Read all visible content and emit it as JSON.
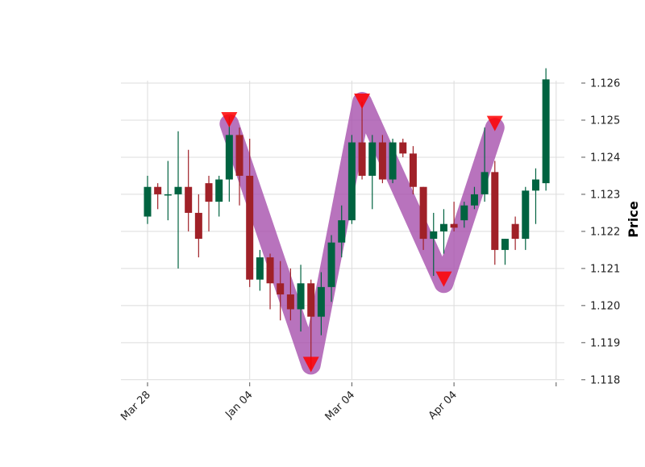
{
  "chart_data": {
    "type": "candlestick",
    "title": "",
    "xlabel": "",
    "ylabel": "Price",
    "ylim": [
      1.1178,
      1.1265
    ],
    "y_ticks": [
      "1.118",
      "1.119",
      "1.120",
      "1.121",
      "1.122",
      "1.123",
      "1.124",
      "1.125",
      "1.126"
    ],
    "x_tick_labels": [
      "Mar 28",
      "Jan 04",
      "Mar 04",
      "Apr 04",
      ""
    ],
    "grid": true,
    "colors": {
      "up": "#006340",
      "down": "#a02128",
      "overlay": "#a650ad",
      "marker": "#ff0000",
      "grid": "#dcdcdc",
      "axis_text": "#222222"
    },
    "candles": [
      {
        "open": 1.1224,
        "high": 1.1235,
        "low": 1.1222,
        "close": 1.1232
      },
      {
        "open": 1.1232,
        "high": 1.1233,
        "low": 1.1226,
        "close": 1.123
      },
      {
        "open": 1.123,
        "high": 1.1239,
        "low": 1.1223,
        "close": 1.123
      },
      {
        "open": 1.123,
        "high": 1.1247,
        "low": 1.121,
        "close": 1.1232
      },
      {
        "open": 1.1232,
        "high": 1.1242,
        "low": 1.122,
        "close": 1.1225
      },
      {
        "open": 1.1225,
        "high": 1.123,
        "low": 1.1213,
        "close": 1.1218
      },
      {
        "open": 1.1233,
        "high": 1.1235,
        "low": 1.122,
        "close": 1.1228
      },
      {
        "open": 1.1228,
        "high": 1.1235,
        "low": 1.1224,
        "close": 1.1234
      },
      {
        "open": 1.1234,
        "high": 1.1251,
        "low": 1.1228,
        "close": 1.1246
      },
      {
        "open": 1.1246,
        "high": 1.1248,
        "low": 1.1227,
        "close": 1.1235
      },
      {
        "open": 1.1235,
        "high": 1.1245,
        "low": 1.1205,
        "close": 1.1207
      },
      {
        "open": 1.1207,
        "high": 1.1215,
        "low": 1.1204,
        "close": 1.1213
      },
      {
        "open": 1.1213,
        "high": 1.1214,
        "low": 1.1199,
        "close": 1.1206
      },
      {
        "open": 1.1206,
        "high": 1.1212,
        "low": 1.1196,
        "close": 1.1203
      },
      {
        "open": 1.1203,
        "high": 1.121,
        "low": 1.1196,
        "close": 1.1199
      },
      {
        "open": 1.1199,
        "high": 1.1211,
        "low": 1.1193,
        "close": 1.1206
      },
      {
        "open": 1.1206,
        "high": 1.1207,
        "low": 1.1183,
        "close": 1.1197
      },
      {
        "open": 1.1197,
        "high": 1.1209,
        "low": 1.1192,
        "close": 1.1205
      },
      {
        "open": 1.1205,
        "high": 1.1219,
        "low": 1.1201,
        "close": 1.1217
      },
      {
        "open": 1.1217,
        "high": 1.1227,
        "low": 1.1213,
        "close": 1.1223
      },
      {
        "open": 1.1223,
        "high": 1.1246,
        "low": 1.1222,
        "close": 1.1244
      },
      {
        "open": 1.1244,
        "high": 1.1255,
        "low": 1.1234,
        "close": 1.1235
      },
      {
        "open": 1.1235,
        "high": 1.1246,
        "low": 1.1226,
        "close": 1.1244
      },
      {
        "open": 1.1244,
        "high": 1.1246,
        "low": 1.1233,
        "close": 1.1234
      },
      {
        "open": 1.1234,
        "high": 1.1245,
        "low": 1.1233,
        "close": 1.1244
      },
      {
        "open": 1.1244,
        "high": 1.1245,
        "low": 1.124,
        "close": 1.1241
      },
      {
        "open": 1.1241,
        "high": 1.1243,
        "low": 1.123,
        "close": 1.1232
      },
      {
        "open": 1.1232,
        "high": 1.1232,
        "low": 1.1215,
        "close": 1.1218
      },
      {
        "open": 1.1218,
        "high": 1.1225,
        "low": 1.1208,
        "close": 1.122
      },
      {
        "open": 1.122,
        "high": 1.1226,
        "low": 1.1214,
        "close": 1.1222
      },
      {
        "open": 1.1222,
        "high": 1.1228,
        "low": 1.122,
        "close": 1.1221
      },
      {
        "open": 1.1223,
        "high": 1.1228,
        "low": 1.1221,
        "close": 1.1227
      },
      {
        "open": 1.1227,
        "high": 1.1232,
        "low": 1.1226,
        "close": 1.123
      },
      {
        "open": 1.123,
        "high": 1.1248,
        "low": 1.1228,
        "close": 1.1236
      },
      {
        "open": 1.1236,
        "high": 1.1239,
        "low": 1.1211,
        "close": 1.1215
      },
      {
        "open": 1.1215,
        "high": 1.1218,
        "low": 1.1211,
        "close": 1.1218
      },
      {
        "open": 1.1222,
        "high": 1.1224,
        "low": 1.1215,
        "close": 1.1218
      },
      {
        "open": 1.1218,
        "high": 1.1232,
        "low": 1.1215,
        "close": 1.1231
      },
      {
        "open": 1.1231,
        "high": 1.1237,
        "low": 1.1222,
        "close": 1.1234
      },
      {
        "open": 1.1233,
        "high": 1.1264,
        "low": 1.1231,
        "close": 1.1261
      }
    ],
    "overlay_line": {
      "points": [
        {
          "index": 8,
          "value": 1.1249
        },
        {
          "index": 16,
          "value": 1.1184
        },
        {
          "index": 21,
          "value": 1.1255
        },
        {
          "index": 29,
          "value": 1.1206
        },
        {
          "index": 34,
          "value": 1.1248
        }
      ]
    },
    "markers": [
      {
        "index": 8,
        "value": 1.125
      },
      {
        "index": 16,
        "value": 1.1184
      },
      {
        "index": 21,
        "value": 1.1255
      },
      {
        "index": 29,
        "value": 1.1207
      },
      {
        "index": 34,
        "value": 1.1249
      }
    ]
  }
}
